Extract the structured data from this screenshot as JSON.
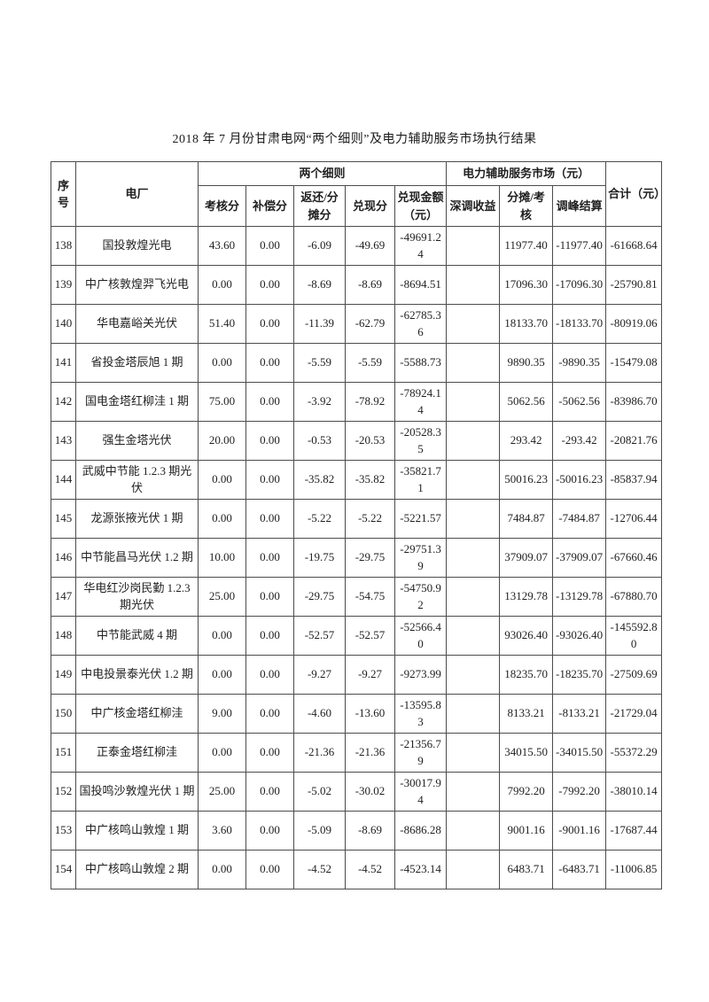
{
  "page": {
    "title": "2018 年 7 月份甘肃电网“两个细则”及电力辅助服务市场执行结果"
  },
  "table": {
    "header": {
      "seq": "序\n号",
      "plant": "电厂",
      "group_rules": "两个细则",
      "group_market": "电力辅助服务市场（元）",
      "total": "合计（元）",
      "sub": [
        "考核分",
        "补偿分",
        "返还/分摊分",
        "兑现分",
        "兑现金额（元）",
        "深调收益",
        "分摊/考核",
        "调峰结算"
      ]
    },
    "rows": [
      [
        "138",
        "国投敦煌光电",
        "43.60",
        "0.00",
        "-6.09",
        "-49.69",
        "-49691.24",
        "",
        "11977.40",
        "-11977.40",
        "-61668.64"
      ],
      [
        "139",
        "中广核敦煌羿飞光电",
        "0.00",
        "0.00",
        "-8.69",
        "-8.69",
        "-8694.51",
        "",
        "17096.30",
        "-17096.30",
        "-25790.81"
      ],
      [
        "140",
        "华电嘉峪关光伏",
        "51.40",
        "0.00",
        "-11.39",
        "-62.79",
        "-62785.36",
        "",
        "18133.70",
        "-18133.70",
        "-80919.06"
      ],
      [
        "141",
        "省投金塔辰旭 1 期",
        "0.00",
        "0.00",
        "-5.59",
        "-5.59",
        "-5588.73",
        "",
        "9890.35",
        "-9890.35",
        "-15479.08"
      ],
      [
        "142",
        "国电金塔红柳洼 1 期",
        "75.00",
        "0.00",
        "-3.92",
        "-78.92",
        "-78924.14",
        "",
        "5062.56",
        "-5062.56",
        "-83986.70"
      ],
      [
        "143",
        "强生金塔光伏",
        "20.00",
        "0.00",
        "-0.53",
        "-20.53",
        "-20528.35",
        "",
        "293.42",
        "-293.42",
        "-20821.76"
      ],
      [
        "144",
        "武威中节能 1.2.3 期光伏",
        "0.00",
        "0.00",
        "-35.82",
        "-35.82",
        "-35821.71",
        "",
        "50016.23",
        "-50016.23",
        "-85837.94"
      ],
      [
        "145",
        "龙源张掖光伏 1 期",
        "0.00",
        "0.00",
        "-5.22",
        "-5.22",
        "-5221.57",
        "",
        "7484.87",
        "-7484.87",
        "-12706.44"
      ],
      [
        "146",
        "中节能昌马光伏 1.2 期",
        "10.00",
        "0.00",
        "-19.75",
        "-29.75",
        "-29751.39",
        "",
        "37909.07",
        "-37909.07",
        "-67660.46"
      ],
      [
        "147",
        "华电红沙岗民勤 1.2.3 期光伏",
        "25.00",
        "0.00",
        "-29.75",
        "-54.75",
        "-54750.92",
        "",
        "13129.78",
        "-13129.78",
        "-67880.70"
      ],
      [
        "148",
        "中节能武威 4 期",
        "0.00",
        "0.00",
        "-52.57",
        "-52.57",
        "-52566.40",
        "",
        "93026.40",
        "-93026.40",
        "-145592.80"
      ],
      [
        "149",
        "中电投景泰光伏 1.2 期",
        "0.00",
        "0.00",
        "-9.27",
        "-9.27",
        "-9273.99",
        "",
        "18235.70",
        "-18235.70",
        "-27509.69"
      ],
      [
        "150",
        "中广核金塔红柳洼",
        "9.00",
        "0.00",
        "-4.60",
        "-13.60",
        "-13595.83",
        "",
        "8133.21",
        "-8133.21",
        "-21729.04"
      ],
      [
        "151",
        "正泰金塔红柳洼",
        "0.00",
        "0.00",
        "-21.36",
        "-21.36",
        "-21356.79",
        "",
        "34015.50",
        "-34015.50",
        "-55372.29"
      ],
      [
        "152",
        "国投鸣沙敦煌光伏 1 期",
        "25.00",
        "0.00",
        "-5.02",
        "-30.02",
        "-30017.94",
        "",
        "7992.20",
        "-7992.20",
        "-38010.14"
      ],
      [
        "153",
        "中广核鸣山敦煌 1 期",
        "3.60",
        "0.00",
        "-5.09",
        "-8.69",
        "-8686.28",
        "",
        "9001.16",
        "-9001.16",
        "-17687.44"
      ],
      [
        "154",
        "中广核鸣山敦煌 2 期",
        "0.00",
        "0.00",
        "-4.52",
        "-4.52",
        "-4523.14",
        "",
        "6483.71",
        "-6483.71",
        "-11006.85"
      ]
    ]
  }
}
